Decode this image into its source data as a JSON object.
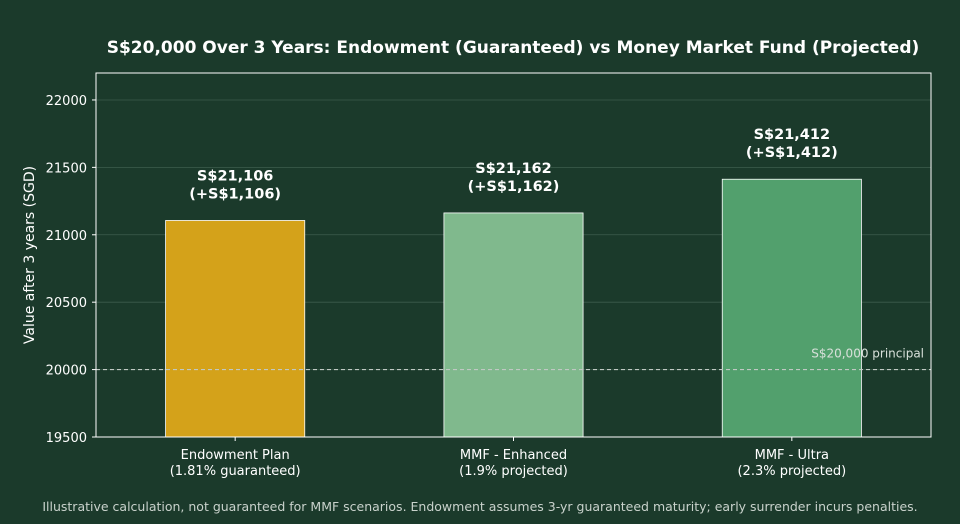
{
  "chart_data": {
    "type": "bar",
    "title": "S$20,000 Over 3 Years: Endowment (Guaranteed) vs Money Market Fund (Projected)",
    "xlabel": "",
    "ylabel": "Value after 3 years (SGD)",
    "ylim": [
      19500,
      22200
    ],
    "yticks": [
      19500,
      20000,
      20500,
      21000,
      21500,
      22000
    ],
    "grid": true,
    "categories": [
      [
        "Endowment Plan",
        "(1.81% guaranteed)"
      ],
      [
        "MMF - Enhanced",
        "(1.9% projected)"
      ],
      [
        "MMF - Ultra",
        "(2.3% projected)"
      ]
    ],
    "values": [
      21106,
      21162,
      21412
    ],
    "data_labels": [
      [
        "S$21,106",
        "(+S$1,106)"
      ],
      [
        "S$21,162",
        "(+S$1,162)"
      ],
      [
        "S$21,412",
        "(+S$1,412)"
      ]
    ],
    "bar_colors": [
      "#d4a21a",
      "#80b98d",
      "#52a06d"
    ],
    "reference_line": {
      "value": 20000,
      "label": "S$20,000 principal"
    },
    "footnote": "Illustrative calculation, not guaranteed for MMF scenarios. Endowment assumes 3-yr guaranteed maturity; early surrender incurs penalties."
  },
  "colors": {
    "background": "#1b3a2b",
    "axis": "#ffffff",
    "grid": "#3d5c4c",
    "reference_line": "#c0c8c3"
  }
}
